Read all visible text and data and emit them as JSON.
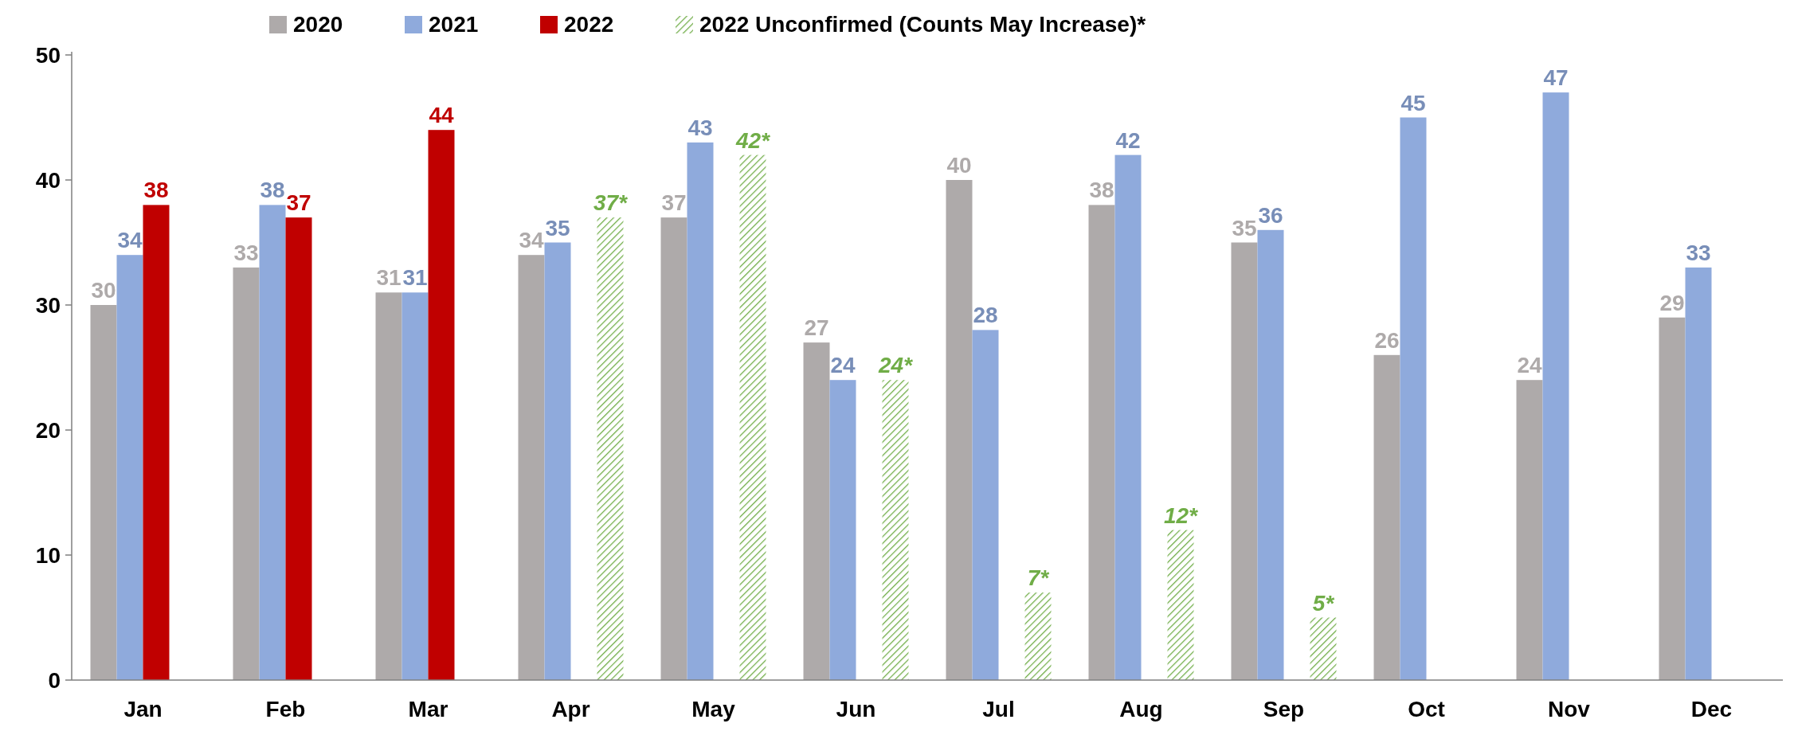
{
  "chart_data": {
    "type": "bar",
    "categories": [
      "Jan",
      "Feb",
      "Mar",
      "Apr",
      "May",
      "Jun",
      "Jul",
      "Aug",
      "Sep",
      "Oct",
      "Nov",
      "Dec"
    ],
    "series": [
      {
        "name": "2020",
        "color": "#aeaaaa",
        "values": [
          30,
          33,
          31,
          34,
          37,
          27,
          40,
          38,
          35,
          26,
          24,
          29
        ],
        "value_labels": [
          "30",
          "33",
          "31",
          "34",
          "37",
          "27",
          "40",
          "38",
          "35",
          "26",
          "24",
          "29"
        ]
      },
      {
        "name": "2021",
        "color": "#8faadc",
        "values": [
          34,
          38,
          31,
          35,
          43,
          24,
          28,
          42,
          36,
          45,
          47,
          33
        ],
        "value_labels": [
          "34",
          "38",
          "31",
          "35",
          "43",
          "24",
          "28",
          "42",
          "36",
          "45",
          "47",
          "33"
        ]
      },
      {
        "name": "2022",
        "color": "#c00000",
        "values": [
          38,
          37,
          44,
          null,
          null,
          null,
          null,
          null,
          null,
          null,
          null,
          null
        ],
        "value_labels": [
          "38",
          "37",
          "44",
          null,
          null,
          null,
          null,
          null,
          null,
          null,
          null,
          null
        ]
      },
      {
        "name": "2022 Unconfirmed (Counts May Increase)*",
        "color": "#70ad47",
        "values": [
          null,
          null,
          null,
          37,
          42,
          24,
          7,
          12,
          5,
          null,
          null,
          null
        ],
        "value_labels": [
          null,
          null,
          null,
          "37*",
          "42*",
          "24*",
          "7*",
          "12*",
          "5*",
          null,
          null,
          null
        ]
      }
    ],
    "ylim": [
      0,
      50
    ],
    "yticks": [
      0,
      10,
      20,
      30,
      40,
      50
    ],
    "grid": false,
    "legend": "top"
  }
}
